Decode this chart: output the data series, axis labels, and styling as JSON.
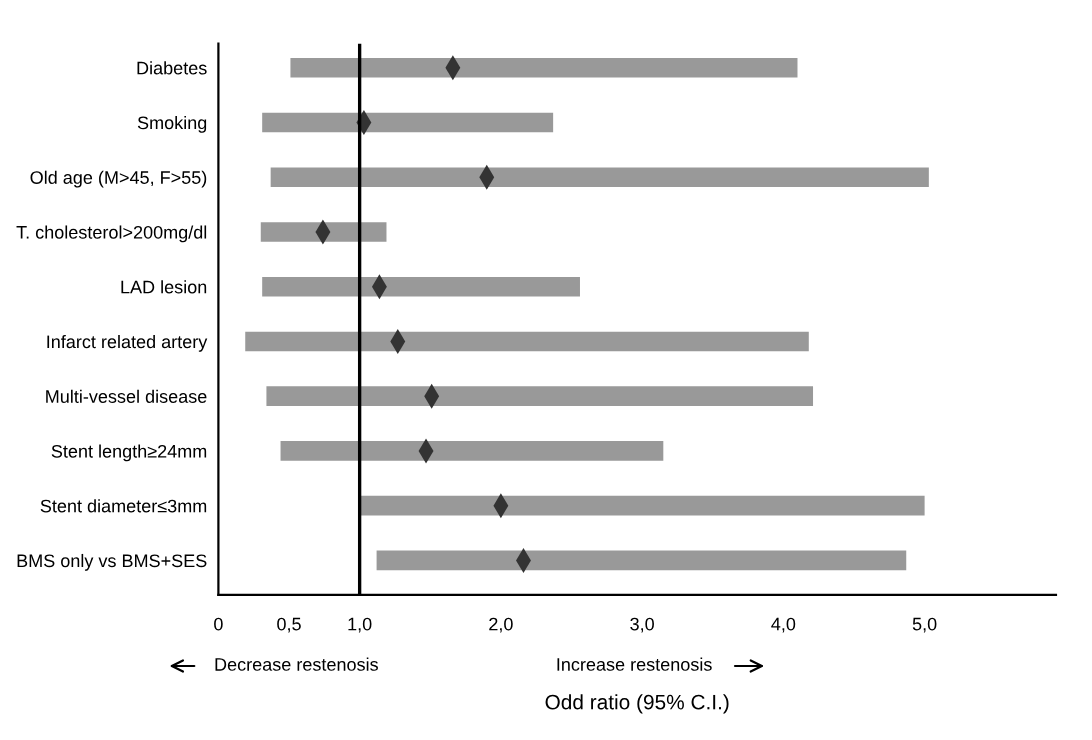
{
  "chart_data": {
    "type": "bar",
    "orientation": "horizontal",
    "xlabel": "Odd ratio (95% C.I.)",
    "categories": [
      "Diabetes",
      "Smoking",
      "Old age (M>45, F>55)",
      "T. cholesterol>200mg/dl",
      "LAD lesion",
      "Infarct related artery",
      "Multi-vessel disease",
      "Stent length≥24mm",
      "Stent diameter≤3mm",
      "BMS only vs BMS+SES"
    ],
    "series": [
      {
        "color": "#999999",
        "base": [
          0.51,
          0.31,
          0.37,
          0.3,
          0.31,
          0.19,
          0.34,
          0.44,
          1.0,
          1.12
        ],
        "values": [
          3.59,
          2.06,
          4.66,
          0.89,
          2.25,
          3.99,
          3.87,
          2.71,
          4.0,
          3.75
        ]
      },
      {
        "type": "scatter",
        "color": "#333333",
        "marker": "diamond",
        "x": [
          "Diabetes",
          "Smoking",
          "Old age (M>45, F>55)",
          "T. cholesterol>200mg/dl",
          "LAD lesion",
          "Infarct related artery",
          "Multi-vessel disease",
          "Stent length≥24mm",
          "Stent diameter≤3mm",
          "BMS only vs BMS+SES"
        ],
        "values": [
          1.66,
          1.03,
          1.9,
          0.74,
          1.14,
          1.27,
          1.51,
          1.47,
          2.0,
          2.16
        ]
      }
    ],
    "xlim": [
      0,
      5.93
    ],
    "xticks": [
      0,
      {
        "value": 0.5,
        "label": "0,5"
      },
      {
        "value": 1.0,
        "label": "1,0"
      },
      {
        "value": 2.0,
        "label": "2,0"
      },
      {
        "value": 3.0,
        "label": "3,0"
      },
      {
        "value": 4.0,
        "label": "4,0"
      },
      {
        "value": 5.0,
        "label": "5,0"
      }
    ],
    "ref_lines": [
      {
        "axis": "x",
        "value": 1.0,
        "color": "#000000"
      }
    ],
    "annotations": [
      "Decrease restenosis",
      "Increase restenosis"
    ],
    "grid": false,
    "legend": false
  }
}
